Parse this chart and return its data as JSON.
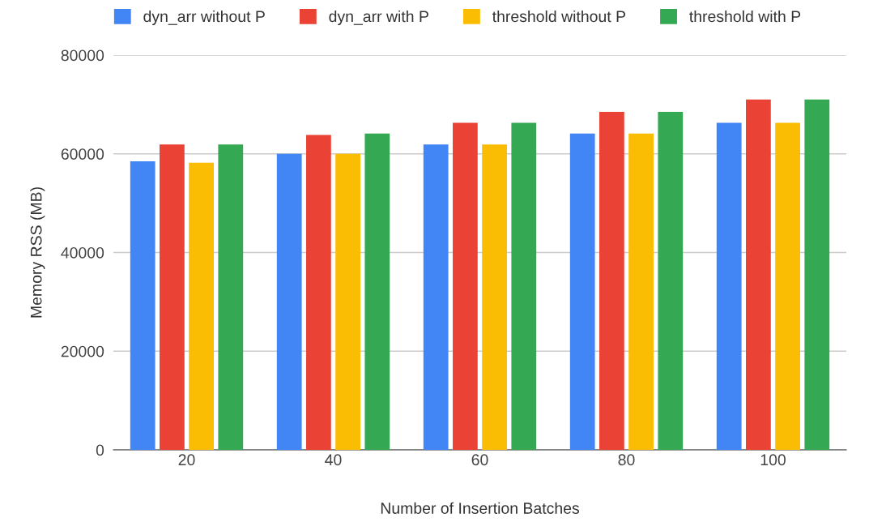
{
  "chart_data": {
    "type": "bar",
    "xlabel": "Number of Insertion Batches",
    "ylabel": "Memory RSS (MB)",
    "categories": [
      "20",
      "40",
      "60",
      "80",
      "100"
    ],
    "series": [
      {
        "name": "dyn_arr without P",
        "color": "#4285f4",
        "values": [
          58500,
          60000,
          61900,
          64100,
          66300
        ]
      },
      {
        "name": "dyn_arr with P",
        "color": "#ea4335",
        "values": [
          61900,
          63800,
          66300,
          68500,
          71000
        ]
      },
      {
        "name": "threshold without P",
        "color": "#fbbc04",
        "values": [
          58200,
          60000,
          61900,
          64100,
          66300
        ]
      },
      {
        "name": "threshold with P",
        "color": "#34a853",
        "values": [
          61900,
          64100,
          66300,
          68500,
          71000
        ]
      }
    ],
    "ylim": [
      0,
      80000
    ],
    "yticks": [
      0,
      20000,
      40000,
      60000,
      80000
    ],
    "grid": "y",
    "legend": "top"
  }
}
